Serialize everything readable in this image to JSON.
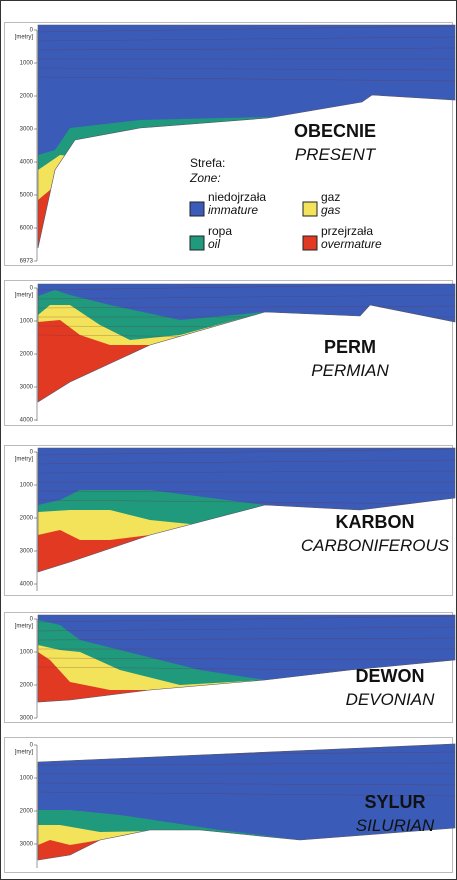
{
  "panels": [
    {
      "title": "OBECNIE",
      "subtitle": "PRESENT",
      "depth_ticks": [
        "0",
        "[metry]",
        "1000",
        "2000",
        "3000",
        "4000",
        "5000",
        "6000",
        "6973"
      ]
    },
    {
      "title": "PERM",
      "subtitle": "PERMIAN",
      "depth_ticks": [
        "0",
        "[metry]",
        "1000",
        "2000",
        "3000",
        "4000"
      ]
    },
    {
      "title": "KARBON",
      "subtitle": "CARBONIFEROUS",
      "depth_ticks": [
        "0",
        "[metry]",
        "1000",
        "2000",
        "3000",
        "4000"
      ]
    },
    {
      "title": "DEWON",
      "subtitle": "DEVONIAN",
      "depth_ticks": [
        "0",
        "[metry]",
        "1000",
        "2000",
        "3000"
      ]
    },
    {
      "title": "SYLUR",
      "subtitle": "SILURIAN",
      "depth_ticks": [
        "0",
        "[metry]",
        "1000",
        "2000",
        "3000"
      ]
    }
  ],
  "legend": {
    "heading": "Strefa:",
    "heading_en": "Zone:",
    "items": [
      {
        "label": "niedojrzała",
        "label_en": "immature",
        "color": "#3a5cb8"
      },
      {
        "label": "gaz",
        "label_en": "gas",
        "color": "#f2e35a"
      },
      {
        "label": "ropa",
        "label_en": "oil",
        "color": "#1f9a7c"
      },
      {
        "label": "przejrzała",
        "label_en": "overmature",
        "color": "#e23a22"
      }
    ]
  }
}
